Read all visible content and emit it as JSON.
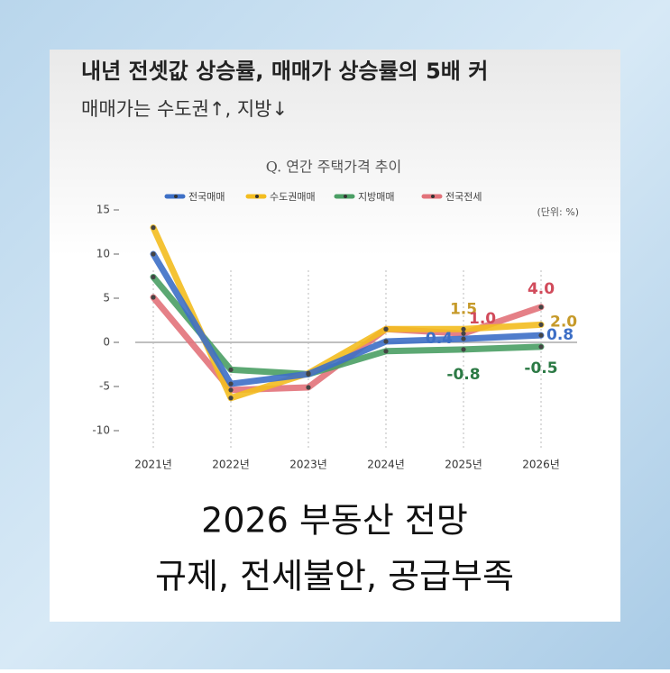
{
  "header": {
    "title": "내년 전셋값 상승률, 매매가 상승률의 5배 커",
    "subtitle": "매매가는 수도권↑, 지방↓"
  },
  "caption": {
    "line1": "2026 부동산 전망",
    "line2": "규제, 전세불안, 공급부족"
  },
  "chart_data": {
    "type": "line",
    "title": "Q. 연간 주택가격 추이",
    "unit_note": "(단위: %)",
    "categories": [
      "2021년",
      "2022년",
      "2023년",
      "2024년",
      "2025년",
      "2026년"
    ],
    "ylim": [
      -12,
      16
    ],
    "yticks": [
      -10,
      -5,
      0,
      5,
      10,
      15
    ],
    "series": [
      {
        "name": "전국매매",
        "color": "#3d6fc6",
        "values": [
          10,
          -4.7,
          -3.6,
          0.1,
          0.4,
          0.8
        ]
      },
      {
        "name": "수도권매매",
        "color": "#f3bd1f",
        "values": [
          13,
          -6.3,
          -3.5,
          1.5,
          1.5,
          2.0
        ],
        "value_labels": [
          null,
          null,
          null,
          null,
          "1.5",
          "2.0"
        ]
      },
      {
        "name": "지방매매",
        "color": "#4a9e64",
        "values": [
          7.4,
          -3.1,
          -3.6,
          -1.0,
          -0.8,
          -0.5
        ]
      },
      {
        "name": "전국전세",
        "color": "#e2727a",
        "values": [
          5.1,
          -5.4,
          -5.1,
          1.5,
          1.0,
          4.0
        ],
        "value_labels": [
          null,
          null,
          null,
          null,
          "1.0",
          "4.0"
        ]
      }
    ]
  }
}
